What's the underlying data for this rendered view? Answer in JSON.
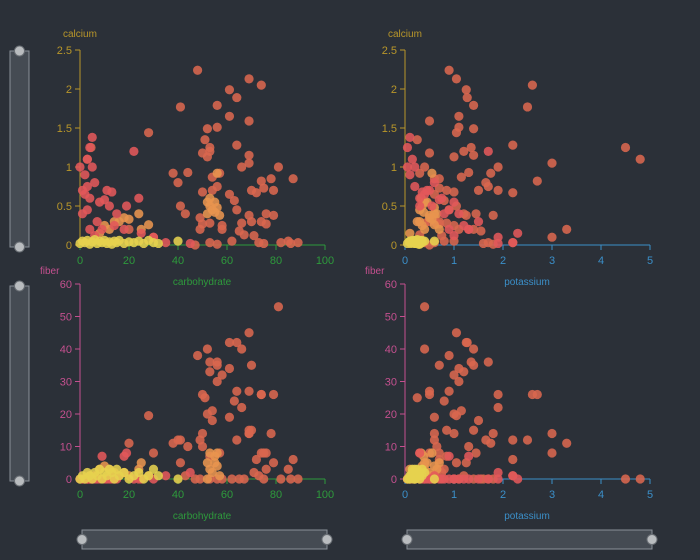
{
  "chart_data": {
    "type": "scatter",
    "variables": {
      "carbohydrate": {
        "label": "carbohydrate",
        "color": "#2e9a3c",
        "range": [
          0,
          100
        ],
        "ticks": [
          0,
          20,
          40,
          60,
          80,
          100
        ]
      },
      "potassium": {
        "label": "potassium",
        "color": "#3b8fc9",
        "range": [
          0,
          5
        ],
        "ticks": [
          0,
          1,
          2,
          3,
          4,
          5
        ]
      },
      "calcium": {
        "label": "calcium",
        "color": "#b8962a",
        "range": [
          0,
          2.5
        ],
        "ticks": [
          0,
          0.5,
          1,
          1.5,
          2,
          2.5
        ]
      },
      "fiber": {
        "label": "fiber",
        "color": "#c4508f",
        "range": [
          0,
          60
        ],
        "ticks": [
          0,
          10,
          20,
          30,
          40,
          50,
          60
        ]
      }
    },
    "point_fields": [
      "carbohydrate",
      "calcium",
      "fiber",
      "potassium"
    ],
    "groups": [
      {
        "color": "#d9674e",
        "points": [
          [
            48,
            2.24,
            38,
            0.9
          ],
          [
            69,
            2.13,
            45,
            1.05
          ],
          [
            74,
            2.05,
            26,
            2.6
          ],
          [
            61,
            1.99,
            42,
            1.25
          ],
          [
            64,
            1.89,
            42,
            1.27
          ],
          [
            56,
            1.79,
            35,
            1.4
          ],
          [
            41,
            1.77,
            12,
            2.5
          ],
          [
            61,
            1.65,
            34,
            1.1
          ],
          [
            69,
            1.59,
            27,
            0.5
          ],
          [
            52,
            1.49,
            40,
            1.4
          ],
          [
            56,
            1.51,
            30,
            1.1
          ],
          [
            28,
            1.44,
            19.5,
            1.05
          ],
          [
            64,
            1.28,
            12,
            2.2
          ],
          [
            51,
            1.35,
            25,
            0.25
          ],
          [
            53,
            1.25,
            36,
            1.35
          ],
          [
            53,
            1.2,
            33,
            1.2
          ],
          [
            50,
            1.18,
            26,
            0.5
          ],
          [
            52,
            1.13,
            20,
            1.0
          ],
          [
            69,
            1.15,
            15,
            1.4
          ],
          [
            69,
            1.05,
            14,
            3.0
          ],
          [
            66,
            1.0,
            22,
            1.9
          ],
          [
            81,
            1.0,
            53,
            0.4
          ],
          [
            38,
            0.92,
            11,
            1.75
          ],
          [
            44,
            0.93,
            10,
            1.3
          ],
          [
            57,
            0.92,
            8,
            0.3
          ],
          [
            54,
            0.87,
            21,
            1.15
          ],
          [
            40,
            0.8,
            12,
            1.65
          ],
          [
            56,
            0.75,
            36,
            1.7
          ],
          [
            74,
            0.82,
            26,
            2.7
          ],
          [
            78,
            0.85,
            14,
            0.6
          ],
          [
            87,
            0.85,
            6,
            0.7
          ],
          [
            50,
            0.68,
            14,
            1.0
          ],
          [
            54,
            0.7,
            18,
            1.5
          ],
          [
            70,
            0.7,
            15,
            0.85
          ],
          [
            75,
            0.73,
            8,
            0.7
          ],
          [
            79,
            0.7,
            26,
            1.9
          ],
          [
            72,
            0.67,
            6,
            2.2
          ],
          [
            61,
            0.65,
            19,
            0.6
          ],
          [
            63,
            0.57,
            24,
            0.8
          ],
          [
            41,
            0.5,
            5,
            1.05
          ],
          [
            43,
            0.4,
            1,
            1.2
          ],
          [
            64,
            0.45,
            27,
            0.9
          ],
          [
            69,
            0.38,
            14,
            1.8
          ],
          [
            76,
            0.4,
            8,
            1.45
          ],
          [
            79,
            0.38,
            5,
            1.25
          ],
          [
            49,
            0.35,
            12,
            0.6
          ],
          [
            50,
            0.27,
            10,
            0.65
          ],
          [
            53,
            0.28,
            7,
            0.85
          ],
          [
            58,
            0.25,
            32,
            1.0
          ],
          [
            66,
            0.28,
            40,
            0.4
          ],
          [
            70,
            0.3,
            35,
            0.7
          ],
          [
            74,
            0.3,
            8,
            0.5
          ],
          [
            76,
            0.27,
            3,
            0.7
          ],
          [
            49,
            0.2,
            0,
            1.1
          ],
          [
            58,
            0.2,
            0,
            1.4
          ],
          [
            65,
            0.18,
            0,
            1.55
          ],
          [
            67,
            0.13,
            0,
            0.3
          ],
          [
            71,
            0.12,
            2,
            0.75
          ],
          [
            53,
            0.03,
            0,
            1.7
          ],
          [
            56,
            0.01,
            0,
            1.8
          ],
          [
            62,
            0.05,
            0,
            1.0
          ],
          [
            73,
            0.03,
            1,
            2.2
          ],
          [
            75,
            0.02,
            0,
            1.6
          ],
          [
            82,
            0.03,
            0,
            0.6
          ],
          [
            85,
            0.05,
            3,
            0.8
          ],
          [
            86,
            0.02,
            0,
            0.3
          ],
          [
            89,
            0.03,
            0,
            0.4
          ],
          [
            47,
            0.0,
            0,
            0.5
          ],
          [
            4.5,
            1.25,
            0,
            4.5
          ],
          [
            3,
            1.1,
            0,
            4.8
          ],
          [
            20,
            0.2,
            11,
            3.3
          ],
          [
            30,
            0.1,
            8,
            3.0
          ]
        ]
      },
      {
        "color": "#e8944e",
        "points": [
          [
            52,
            0.55,
            5,
            0.4
          ],
          [
            53,
            0.5,
            3,
            0.35
          ],
          [
            54,
            0.45,
            2,
            0.3
          ],
          [
            55,
            0.42,
            7,
            0.38
          ],
          [
            55,
            0.55,
            5,
            0.45
          ],
          [
            56,
            0.48,
            4,
            0.6
          ],
          [
            53,
            0.6,
            8,
            0.33
          ],
          [
            57,
            0.38,
            1,
            0.5
          ],
          [
            52,
            0.4,
            0,
            0.6
          ],
          [
            56,
            0.92,
            8,
            0.55
          ],
          [
            10,
            0.25,
            4,
            0.35
          ],
          [
            12,
            0.2,
            3,
            0.4
          ],
          [
            14,
            0.3,
            2,
            0.3
          ],
          [
            16,
            0.3,
            1,
            0.25
          ],
          [
            18,
            0.35,
            2,
            0.5
          ],
          [
            20,
            0.33,
            1,
            0.55
          ],
          [
            24,
            0.4,
            3,
            0.65
          ],
          [
            28,
            0.26,
            1,
            0.6
          ],
          [
            8,
            0.15,
            3,
            0.1
          ],
          [
            25,
            0.2,
            5,
            0.7
          ]
        ]
      },
      {
        "color": "#e2585a",
        "points": [
          [
            1,
            0.7,
            0,
            0.5
          ],
          [
            2,
            0.65,
            0,
            0.4
          ],
          [
            3,
            0.75,
            0,
            0.2
          ],
          [
            4,
            0.6,
            1,
            0.3
          ],
          [
            2,
            0.9,
            0,
            0.1
          ],
          [
            3,
            1.1,
            0,
            0.15
          ],
          [
            4,
            1.25,
            0,
            0.05
          ],
          [
            5,
            1.38,
            0,
            0.1
          ],
          [
            0,
            1.0,
            0,
            0.05
          ],
          [
            5,
            1.0,
            0,
            0.2
          ],
          [
            1,
            0.4,
            0,
            0.8
          ],
          [
            3,
            0.45,
            0,
            0.9
          ],
          [
            6,
            0.8,
            1,
            0.6
          ],
          [
            8,
            0.55,
            0,
            1.0
          ],
          [
            10,
            0.58,
            0,
            0.7
          ],
          [
            11,
            0.7,
            0,
            0.45
          ],
          [
            13,
            0.68,
            0,
            0.35
          ],
          [
            12,
            0.5,
            0,
            0.55
          ],
          [
            22,
            1.2,
            0,
            1.7
          ],
          [
            24,
            0.6,
            0,
            0.75
          ],
          [
            19,
            0.5,
            8,
            0.3
          ],
          [
            15,
            0.4,
            0,
            1.1
          ],
          [
            7,
            0.3,
            0,
            1.5
          ],
          [
            9,
            0.2,
            7,
            0.9
          ],
          [
            18,
            0.2,
            7,
            1.3
          ],
          [
            25,
            0.15,
            0,
            2.3
          ],
          [
            35,
            0.03,
            1,
            2.2
          ],
          [
            45,
            0.02,
            2,
            1.9
          ],
          [
            30,
            0.1,
            0,
            1.9
          ],
          [
            14,
            0.25,
            0,
            1.2
          ],
          [
            6,
            0.12,
            0,
            1.0
          ],
          [
            4,
            0.2,
            0,
            1.3
          ]
        ]
      },
      {
        "color": "#e6d24e",
        "points": [
          [
            0,
            0.02,
            0,
            0.05
          ],
          [
            1,
            0.05,
            1,
            0.1
          ],
          [
            2,
            0.03,
            0,
            0.2
          ],
          [
            3,
            0.06,
            2,
            0.15
          ],
          [
            4,
            0.01,
            1,
            0.3
          ],
          [
            5,
            0.04,
            0,
            0.08
          ],
          [
            6,
            0.07,
            2,
            0.25
          ],
          [
            7,
            0.02,
            1,
            0.12
          ],
          [
            8,
            0.05,
            3,
            0.2
          ],
          [
            9,
            0.03,
            0,
            0.18
          ],
          [
            10,
            0.06,
            2,
            0.3
          ],
          [
            11,
            0.02,
            1,
            0.22
          ],
          [
            12,
            0.04,
            3,
            0.15
          ],
          [
            13,
            0.01,
            2,
            0.28
          ],
          [
            14,
            0.05,
            0,
            0.1
          ],
          [
            15,
            0.03,
            3,
            0.35
          ],
          [
            16,
            0.06,
            1,
            0.2
          ],
          [
            18,
            0.02,
            2,
            0.25
          ],
          [
            20,
            0.04,
            0,
            0.3
          ],
          [
            22,
            0.03,
            1,
            0.15
          ],
          [
            24,
            0.05,
            2,
            0.4
          ],
          [
            26,
            0.02,
            0,
            0.2
          ],
          [
            28,
            0.06,
            1,
            0.35
          ],
          [
            30,
            0.03,
            3,
            0.25
          ],
          [
            32,
            0.02,
            1,
            0.3
          ],
          [
            40,
            0.05,
            0,
            0.6
          ]
        ]
      }
    ],
    "panels": [
      {
        "x": "carbohydrate",
        "y": "calcium"
      },
      {
        "x": "potassium",
        "y": "calcium"
      },
      {
        "x": "carbohydrate",
        "y": "fiber"
      },
      {
        "x": "potassium",
        "y": "fiber"
      }
    ],
    "grid": false,
    "legend": "none"
  },
  "labels": {
    "calcium": "calcium",
    "fiber": "fiber",
    "carbohydrate": "carbohydrate",
    "potassium": "potassium"
  }
}
